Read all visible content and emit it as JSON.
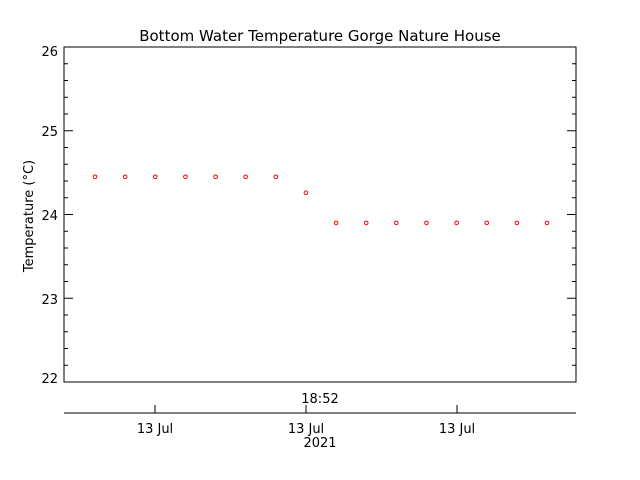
{
  "chart_data": {
    "type": "scatter",
    "title": "Bottom Water Temperature Gorge Nature House",
    "ylabel": "Temperature (°C)",
    "ylim": [
      22,
      26
    ],
    "yticks": [
      "22",
      "23",
      "24",
      "25",
      "26"
    ],
    "x_time_label": "18:52",
    "x_date_labels": [
      "13 Jul",
      "13 Jul",
      "13 Jul"
    ],
    "x_year_label": "2021",
    "grid": false,
    "series": [
      {
        "color": "#ff0000",
        "marker": "circle",
        "values": [
          24.45,
          24.45,
          24.45,
          24.45,
          24.45,
          24.45,
          24.45,
          24.26,
          23.9,
          23.9,
          23.9,
          23.9,
          23.9,
          23.9,
          23.9,
          23.9
        ]
      }
    ]
  }
}
